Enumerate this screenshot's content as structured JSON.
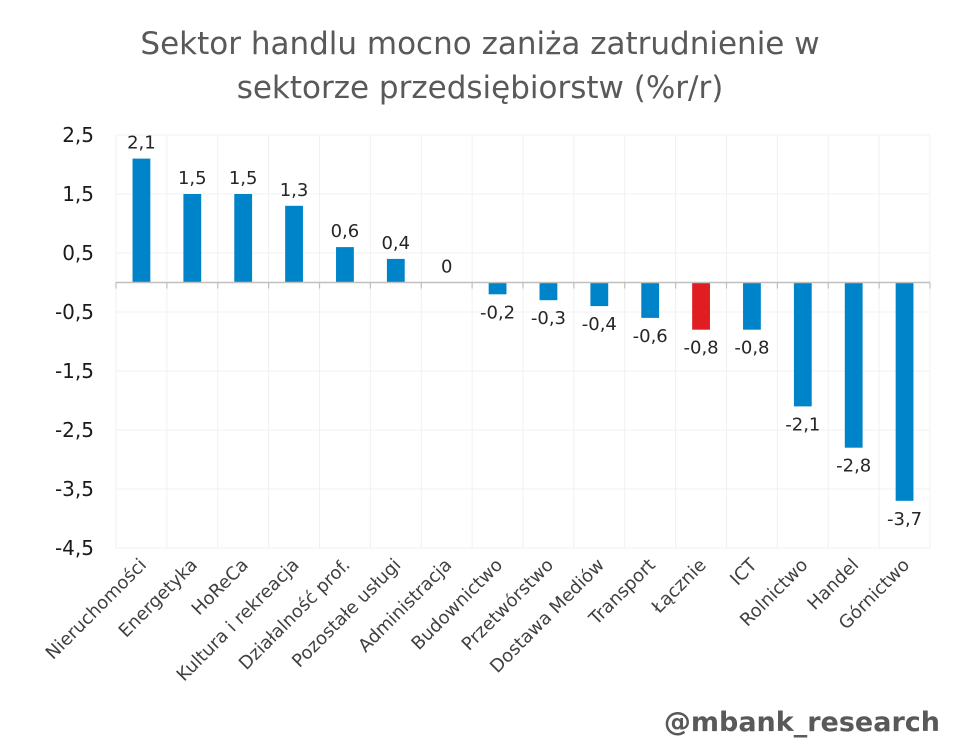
{
  "chart_data": {
    "type": "bar",
    "title_lines": [
      "Sektor handlu mocno zaniża zatrudnienie w",
      "sektorze przedsiębiorstw (%r/r)"
    ],
    "title": "Sektor handlu mocno zaniża zatrudnienie w sektorze przedsiębiorstw (%r/r)",
    "xlabel": "",
    "ylabel": "",
    "categories": [
      "Nieruchomości",
      "Energetyka",
      "HoReCa",
      "Kultura i rekreacja",
      "Działalność prof.",
      "Pozostałe usługi",
      "Administracja",
      "Budownictwo",
      "Przetwórstwo",
      "Dostawa Mediów",
      "Transport",
      "Łącznie",
      "ICT",
      "Rolnictwo",
      "Handel",
      "Górnictwo"
    ],
    "values": [
      2.1,
      1.5,
      1.5,
      1.3,
      0.6,
      0.4,
      0,
      -0.2,
      -0.3,
      -0.4,
      -0.6,
      -0.8,
      -0.8,
      -2.1,
      -2.8,
      -3.7
    ],
    "data_labels": [
      "2,1",
      "1,5",
      "1,5",
      "1,3",
      "0,6",
      "0,4",
      "0",
      "-0,2",
      "-0,3",
      "-0,4",
      "-0,6",
      "-0,8",
      "-0,8",
      "-2,1",
      "-2,8",
      "-3,7"
    ],
    "highlight_category": "Łącznie",
    "ylim": [
      -4.5,
      2.5
    ],
    "yticks": [
      2.5,
      1.5,
      0.5,
      -0.5,
      -1.5,
      -2.5,
      -3.5,
      -4.5
    ],
    "ytick_labels": [
      "2,5",
      "1,5",
      "0,5",
      "-0,5",
      "-1,5",
      "-2,5",
      "-3,5",
      "-4,5"
    ],
    "grid": true,
    "legend": "none",
    "colors": {
      "bar": "#0084C9",
      "highlight": "#E01E22",
      "grid": "#F0F0F0",
      "axis": "#BFBFBF"
    }
  },
  "watermark": "@mbank_research"
}
